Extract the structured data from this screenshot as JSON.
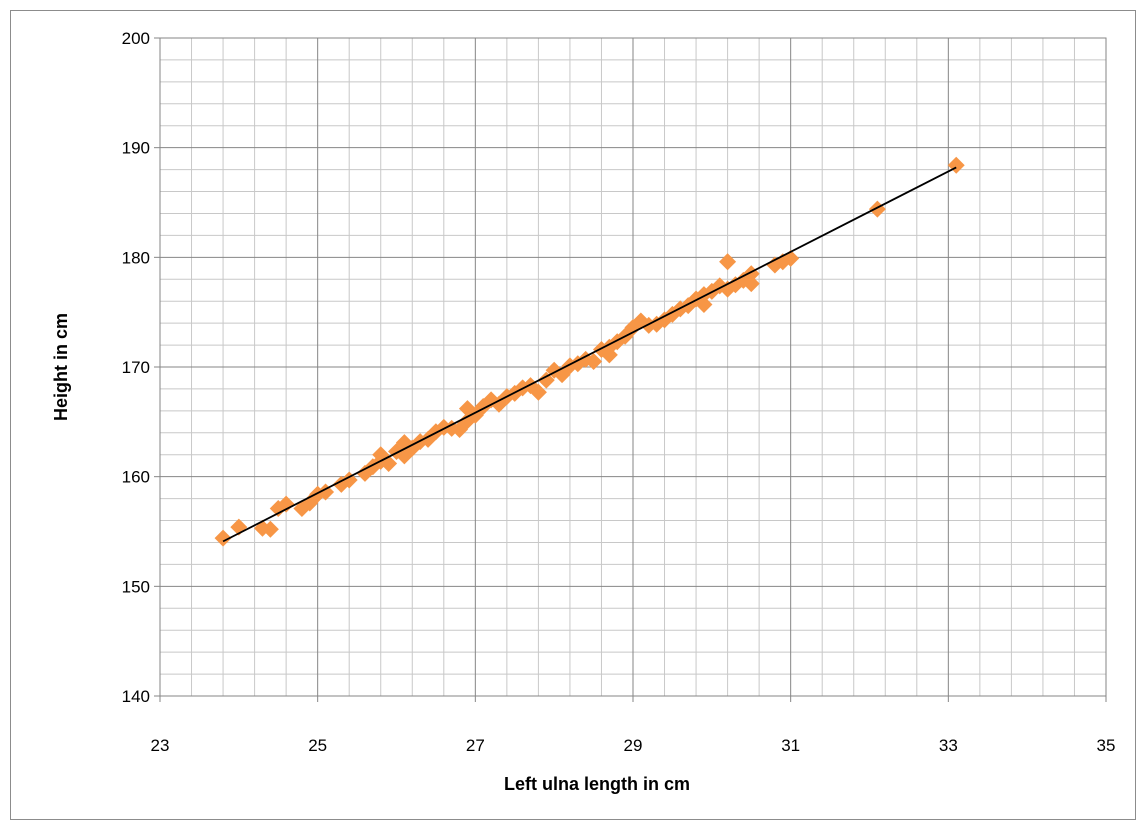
{
  "chart_data": {
    "type": "scatter",
    "title": "",
    "xlabel": "Left ulna length in cm",
    "ylabel": "Height in cm",
    "xlim": [
      23,
      35
    ],
    "ylim": [
      140,
      200
    ],
    "x_ticks": [
      23,
      25,
      27,
      29,
      31,
      33,
      35
    ],
    "y_ticks": [
      140,
      150,
      160,
      170,
      180,
      190,
      200
    ],
    "grid": true,
    "legend": "none",
    "marker_color": "#F79646",
    "trendline_color": "#000000",
    "trendline": {
      "x": [
        23.8,
        33.1
      ],
      "y": [
        154.1,
        188.2
      ]
    },
    "series": [
      {
        "points": [
          [
            23.8,
            154.4
          ],
          [
            24.0,
            155.4
          ],
          [
            24.3,
            155.3
          ],
          [
            24.4,
            155.2
          ],
          [
            24.5,
            157.1
          ],
          [
            24.6,
            157.5
          ],
          [
            24.8,
            157.1
          ],
          [
            24.9,
            157.6
          ],
          [
            25.0,
            158.4
          ],
          [
            25.1,
            158.6
          ],
          [
            25.3,
            159.3
          ],
          [
            25.4,
            159.7
          ],
          [
            25.6,
            160.3
          ],
          [
            25.7,
            160.9
          ],
          [
            25.8,
            161.4
          ],
          [
            25.8,
            162.0
          ],
          [
            25.9,
            161.2
          ],
          [
            26.0,
            162.3
          ],
          [
            26.1,
            163.1
          ],
          [
            26.1,
            161.9
          ],
          [
            26.2,
            162.6
          ],
          [
            26.3,
            163.2
          ],
          [
            26.4,
            163.4
          ],
          [
            26.5,
            164.1
          ],
          [
            26.6,
            164.5
          ],
          [
            26.7,
            164.4
          ],
          [
            26.8,
            164.3
          ],
          [
            26.9,
            166.2
          ],
          [
            26.9,
            165.1
          ],
          [
            27.0,
            165.6
          ],
          [
            27.1,
            166.4
          ],
          [
            27.2,
            167.0
          ],
          [
            27.3,
            166.6
          ],
          [
            27.4,
            167.3
          ],
          [
            27.5,
            167.6
          ],
          [
            27.6,
            168.1
          ],
          [
            27.7,
            168.3
          ],
          [
            27.8,
            167.7
          ],
          [
            27.9,
            168.8
          ],
          [
            28.0,
            169.7
          ],
          [
            28.1,
            169.3
          ],
          [
            28.2,
            170.1
          ],
          [
            28.3,
            170.3
          ],
          [
            28.4,
            170.7
          ],
          [
            28.5,
            170.5
          ],
          [
            28.6,
            171.6
          ],
          [
            28.7,
            171.8
          ],
          [
            28.7,
            171.1
          ],
          [
            28.8,
            172.3
          ],
          [
            28.9,
            172.8
          ],
          [
            29.0,
            173.6
          ],
          [
            29.1,
            174.2
          ],
          [
            29.2,
            173.8
          ],
          [
            29.3,
            173.9
          ],
          [
            29.4,
            174.3
          ],
          [
            29.5,
            174.8
          ],
          [
            29.6,
            175.3
          ],
          [
            29.7,
            175.6
          ],
          [
            29.8,
            176.2
          ],
          [
            29.9,
            176.6
          ],
          [
            29.9,
            175.7
          ],
          [
            30.0,
            176.9
          ],
          [
            30.1,
            177.4
          ],
          [
            30.2,
            177.1
          ],
          [
            30.2,
            179.6
          ],
          [
            30.3,
            177.5
          ],
          [
            30.4,
            177.9
          ],
          [
            30.5,
            178.5
          ],
          [
            30.5,
            177.6
          ],
          [
            30.8,
            179.3
          ],
          [
            30.9,
            179.6
          ],
          [
            31.0,
            179.9
          ],
          [
            32.1,
            184.4
          ],
          [
            33.1,
            188.4
          ]
        ]
      }
    ]
  }
}
